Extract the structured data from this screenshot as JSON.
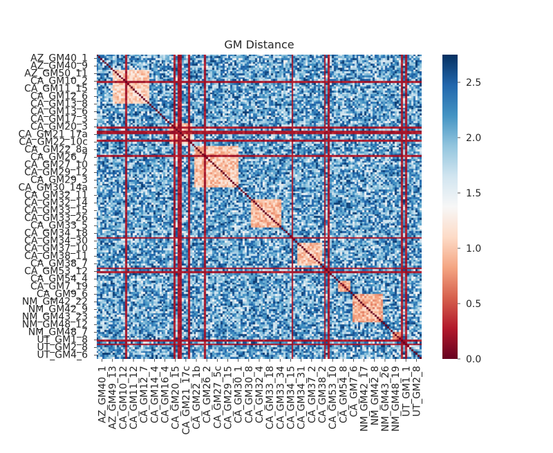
{
  "chart_data": {
    "type": "heatmap",
    "title": "GM Distance",
    "xlabel": "",
    "ylabel": "",
    "y_tick_labels": [
      "AZ_GM40_1",
      "AZ_GM40_9",
      "AZ_GM50_11",
      "CA_GM10_2",
      "CA_GM11_15",
      "CA_GM12_6",
      "CA_GM13_8",
      "CA_GM13_6",
      "CA_GM17_3",
      "CA_GM20_3",
      "CA_GM21_17a",
      "CA_GM22_10c",
      "CA_GM22_8a",
      "CA_GM26_7",
      "CA_GM27_10",
      "CA_GM29_12",
      "CA_GM29_3",
      "CA_GM30_14a",
      "CA_GM32_11",
      "CA_GM32_14",
      "CA_GM33_15",
      "CA_GM33_26",
      "CA_GM33_5",
      "CA_GM34_18",
      "CA_GM34_30",
      "CA_GM37_10",
      "CA_GM38_11",
      "CA_GM38_7",
      "CA_GM53_12",
      "CA_GM54_4",
      "CA_GM7_19",
      "CA_GM9_6",
      "NM_GM42_22",
      "NM_GM42_9",
      "NM_GM43_23",
      "NM_GM48_12",
      "NM_GM48_7",
      "UT_GM1_8",
      "UT_GM2_8",
      "UT_GM4_6"
    ],
    "x_tick_labels": [
      "AZ_GM40_1",
      "AZ_GM49_13",
      "CA_GM10_12",
      "CA_GM11_12",
      "CA_GM12_7",
      "CA_GM14_4",
      "CA_GM16_4",
      "CA_GM20_15",
      "CA_GM21_17c",
      "CA_GM22_1b",
      "CA_GM26_2",
      "CA_GM27_5c",
      "CA_GM29_15",
      "CA_GM30_1",
      "CA_GM30_8",
      "CA_GM32_4",
      "CA_GM33_18",
      "CA_GM33_34",
      "CA_GM34_15",
      "CA_GM34_31",
      "CA_GM37_2",
      "CA_GM38_2",
      "CA_GM53_10",
      "CA_GM54_8",
      "CA_GM7_6",
      "NM_GM42_17",
      "NM_GM42_8",
      "NM_GM43_26",
      "NM_GM48_19",
      "UT_GM1_1",
      "UT_GM2_8"
    ],
    "colorbar": {
      "min": 0.0,
      "max": 2.75,
      "ticks": [
        0.0,
        0.5,
        1.0,
        1.5,
        2.0,
        2.5
      ],
      "tick_labels": [
        "0.0",
        "0.5",
        "1.0",
        "1.5",
        "2.0",
        "2.5"
      ],
      "colormap": "RdBu"
    },
    "n_samples": 160,
    "diagonal_value": 0.0,
    "clusters": [
      {
        "start": 8,
        "end": 25,
        "within": 1.05
      },
      {
        "start": 36,
        "end": 46,
        "within": 0.95
      },
      {
        "start": 48,
        "end": 69,
        "within": 1.0
      },
      {
        "start": 76,
        "end": 90,
        "within": 0.95
      },
      {
        "start": 99,
        "end": 110,
        "within": 1.0
      },
      {
        "start": 119,
        "end": 124,
        "within": 0.8
      },
      {
        "start": 126,
        "end": 140,
        "within": 0.9
      },
      {
        "start": 146,
        "end": 150,
        "within": 0.7
      }
    ],
    "outlier_columns": [
      14,
      38,
      40,
      41,
      45,
      53,
      96,
      112,
      114,
      150,
      152
    ],
    "outlier_value": 0.15
  }
}
